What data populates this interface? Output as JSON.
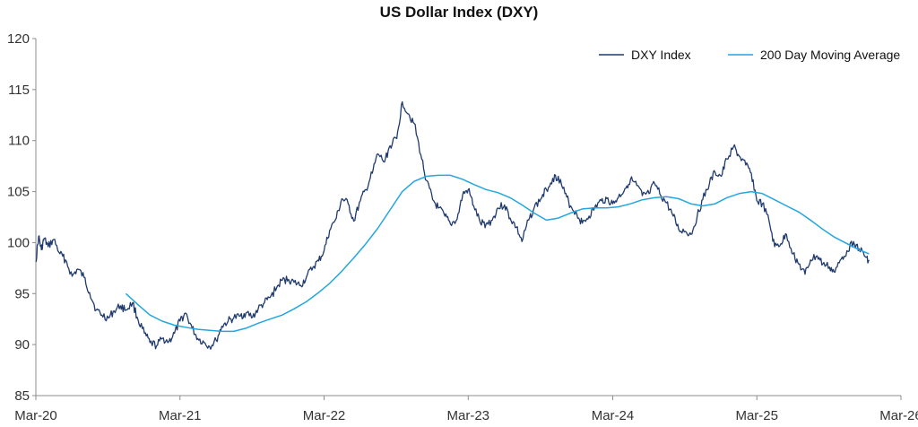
{
  "chart_data": {
    "type": "line",
    "title": "US Dollar Index (DXY)",
    "xlabel": "",
    "ylabel": "",
    "ylim": [
      85,
      120
    ],
    "yticks": [
      85,
      90,
      95,
      100,
      105,
      110,
      115,
      120
    ],
    "xlim": [
      "2020-03-01",
      "2026-03-01"
    ],
    "xticks": [
      {
        "date": "2020-03-01",
        "label": "Mar-20"
      },
      {
        "date": "2021-03-01",
        "label": "Mar-21"
      },
      {
        "date": "2022-03-01",
        "label": "Mar-22"
      },
      {
        "date": "2023-03-01",
        "label": "Mar-23"
      },
      {
        "date": "2024-03-01",
        "label": "Mar-24"
      },
      {
        "date": "2025-03-01",
        "label": "Mar-25"
      },
      {
        "date": "2026-03-01",
        "label": "Mar-26"
      }
    ],
    "grid": false,
    "legend": "top-right",
    "series": [
      {
        "name": "DXY Index",
        "color": "#1f3a6e",
        "points": [
          [
            "2020-03-01",
            98.1
          ],
          [
            "2020-03-08",
            100.6
          ],
          [
            "2020-03-15",
            99.3
          ],
          [
            "2020-03-22",
            100.4
          ],
          [
            "2020-04-01",
            99.6
          ],
          [
            "2020-04-15",
            100.3
          ],
          [
            "2020-05-01",
            98.9
          ],
          [
            "2020-05-15",
            98.3
          ],
          [
            "2020-06-01",
            96.7
          ],
          [
            "2020-06-15",
            97.4
          ],
          [
            "2020-07-01",
            96.6
          ],
          [
            "2020-07-15",
            95.1
          ],
          [
            "2020-08-01",
            93.4
          ],
          [
            "2020-08-15",
            92.9
          ],
          [
            "2020-09-01",
            92.6
          ],
          [
            "2020-09-15",
            93.3
          ],
          [
            "2020-10-01",
            93.8
          ],
          [
            "2020-10-15",
            93.4
          ],
          [
            "2020-11-01",
            94.1
          ],
          [
            "2020-11-15",
            92.4
          ],
          [
            "2020-12-01",
            91.1
          ],
          [
            "2020-12-15",
            90.2
          ],
          [
            "2021-01-01",
            89.9
          ],
          [
            "2021-01-15",
            90.6
          ],
          [
            "2021-02-01",
            90.3
          ],
          [
            "2021-02-15",
            91.1
          ],
          [
            "2021-03-01",
            92.3
          ],
          [
            "2021-03-15",
            93.1
          ],
          [
            "2021-04-01",
            91.6
          ],
          [
            "2021-04-15",
            90.6
          ],
          [
            "2021-05-01",
            90.2
          ],
          [
            "2021-05-15",
            89.8
          ],
          [
            "2021-06-01",
            90.4
          ],
          [
            "2021-06-15",
            91.8
          ],
          [
            "2021-07-01",
            92.3
          ],
          [
            "2021-07-15",
            92.6
          ],
          [
            "2021-08-01",
            92.8
          ],
          [
            "2021-08-15",
            93.1
          ],
          [
            "2021-09-01",
            92.7
          ],
          [
            "2021-09-15",
            93.5
          ],
          [
            "2021-10-01",
            94.1
          ],
          [
            "2021-10-15",
            94.6
          ],
          [
            "2021-11-01",
            95.6
          ],
          [
            "2021-11-15",
            96.3
          ],
          [
            "2021-12-01",
            96.4
          ],
          [
            "2021-12-15",
            96.1
          ],
          [
            "2022-01-01",
            95.8
          ],
          [
            "2022-01-15",
            96.6
          ],
          [
            "2022-02-01",
            97.6
          ],
          [
            "2022-02-15",
            98.2
          ],
          [
            "2022-03-01",
            99.2
          ],
          [
            "2022-03-15",
            101.2
          ],
          [
            "2022-04-01",
            102.4
          ],
          [
            "2022-04-15",
            104.3
          ],
          [
            "2022-05-01",
            103.8
          ],
          [
            "2022-05-15",
            102.1
          ],
          [
            "2022-06-01",
            104.1
          ],
          [
            "2022-06-15",
            105.2
          ],
          [
            "2022-07-01",
            106.8
          ],
          [
            "2022-07-15",
            108.7
          ],
          [
            "2022-08-01",
            107.9
          ],
          [
            "2022-08-15",
            109.5
          ],
          [
            "2022-09-01",
            110.2
          ],
          [
            "2022-09-15",
            113.8
          ],
          [
            "2022-10-01",
            112.6
          ],
          [
            "2022-10-15",
            111.7
          ],
          [
            "2022-11-01",
            108.6
          ],
          [
            "2022-11-15",
            106.1
          ],
          [
            "2022-12-01",
            104.2
          ],
          [
            "2022-12-15",
            103.4
          ],
          [
            "2023-01-01",
            102.6
          ],
          [
            "2023-01-15",
            101.8
          ],
          [
            "2023-02-01",
            102.3
          ],
          [
            "2023-02-15",
            104.7
          ],
          [
            "2023-03-01",
            105.2
          ],
          [
            "2023-03-15",
            103.6
          ],
          [
            "2023-04-01",
            101.9
          ],
          [
            "2023-04-15",
            101.8
          ],
          [
            "2023-05-01",
            102.2
          ],
          [
            "2023-05-15",
            103.4
          ],
          [
            "2023-06-01",
            103.7
          ],
          [
            "2023-06-15",
            102.4
          ],
          [
            "2023-07-01",
            101.5
          ],
          [
            "2023-07-15",
            100.1
          ],
          [
            "2023-08-01",
            102.2
          ],
          [
            "2023-08-15",
            103.4
          ],
          [
            "2023-09-01",
            104.3
          ],
          [
            "2023-09-15",
            105.2
          ],
          [
            "2023-10-01",
            106.3
          ],
          [
            "2023-10-15",
            106.5
          ],
          [
            "2023-11-01",
            104.8
          ],
          [
            "2023-11-15",
            103.6
          ],
          [
            "2023-12-01",
            102.8
          ],
          [
            "2023-12-15",
            101.9
          ],
          [
            "2024-01-01",
            102.6
          ],
          [
            "2024-01-15",
            103.4
          ],
          [
            "2024-02-01",
            104.1
          ],
          [
            "2024-02-15",
            104.3
          ],
          [
            "2024-03-01",
            103.8
          ],
          [
            "2024-03-15",
            104.4
          ],
          [
            "2024-04-01",
            105.3
          ],
          [
            "2024-04-15",
            106.2
          ],
          [
            "2024-05-01",
            105.6
          ],
          [
            "2024-05-15",
            104.6
          ],
          [
            "2024-06-01",
            104.8
          ],
          [
            "2024-06-15",
            105.8
          ],
          [
            "2024-07-01",
            104.6
          ],
          [
            "2024-07-15",
            103.9
          ],
          [
            "2024-08-01",
            102.6
          ],
          [
            "2024-08-15",
            101.3
          ],
          [
            "2024-09-01",
            101.1
          ],
          [
            "2024-09-15",
            100.8
          ],
          [
            "2024-10-01",
            102.6
          ],
          [
            "2024-10-15",
            104.2
          ],
          [
            "2024-11-01",
            105.8
          ],
          [
            "2024-11-15",
            106.9
          ],
          [
            "2024-12-01",
            106.5
          ],
          [
            "2024-12-15",
            108.2
          ],
          [
            "2025-01-01",
            109.4
          ],
          [
            "2025-01-15",
            108.5
          ],
          [
            "2025-02-01",
            107.6
          ],
          [
            "2025-02-15",
            106.8
          ],
          [
            "2025-03-01",
            104.1
          ],
          [
            "2025-03-15",
            103.8
          ],
          [
            "2025-04-01",
            102.1
          ],
          [
            "2025-04-15",
            99.6
          ],
          [
            "2025-05-01",
            99.9
          ],
          [
            "2025-05-15",
            100.8
          ],
          [
            "2025-06-01",
            98.9
          ],
          [
            "2025-06-15",
            97.9
          ],
          [
            "2025-07-01",
            96.9
          ],
          [
            "2025-07-15",
            98.3
          ],
          [
            "2025-08-01",
            98.7
          ],
          [
            "2025-08-15",
            97.9
          ],
          [
            "2025-09-01",
            97.6
          ],
          [
            "2025-09-15",
            97.1
          ],
          [
            "2025-10-01",
            98.4
          ],
          [
            "2025-10-15",
            99.2
          ],
          [
            "2025-11-01",
            100.1
          ],
          [
            "2025-11-15",
            99.4
          ],
          [
            "2025-12-01",
            98.6
          ],
          [
            "2025-12-10",
            98.3
          ]
        ]
      },
      {
        "name": "200 Day Moving Average",
        "color": "#23a6e0",
        "points": [
          [
            "2020-10-15",
            95.0
          ],
          [
            "2020-11-15",
            93.9
          ],
          [
            "2020-12-15",
            92.9
          ],
          [
            "2021-01-15",
            92.3
          ],
          [
            "2021-02-15",
            91.9
          ],
          [
            "2021-03-15",
            91.7
          ],
          [
            "2021-04-15",
            91.5
          ],
          [
            "2021-05-15",
            91.4
          ],
          [
            "2021-06-15",
            91.3
          ],
          [
            "2021-07-15",
            91.3
          ],
          [
            "2021-08-15",
            91.6
          ],
          [
            "2021-09-15",
            92.1
          ],
          [
            "2021-10-15",
            92.5
          ],
          [
            "2021-11-15",
            92.9
          ],
          [
            "2021-12-15",
            93.5
          ],
          [
            "2022-01-15",
            94.2
          ],
          [
            "2022-02-15",
            95.1
          ],
          [
            "2022-03-15",
            96.0
          ],
          [
            "2022-04-15",
            97.2
          ],
          [
            "2022-05-15",
            98.5
          ],
          [
            "2022-06-15",
            99.9
          ],
          [
            "2022-07-15",
            101.4
          ],
          [
            "2022-08-15",
            103.2
          ],
          [
            "2022-09-15",
            105.0
          ],
          [
            "2022-10-15",
            106.0
          ],
          [
            "2022-11-15",
            106.5
          ],
          [
            "2022-12-15",
            106.6
          ],
          [
            "2023-01-15",
            106.6
          ],
          [
            "2023-02-15",
            106.2
          ],
          [
            "2023-03-15",
            105.7
          ],
          [
            "2023-04-15",
            105.2
          ],
          [
            "2023-05-15",
            104.9
          ],
          [
            "2023-06-15",
            104.4
          ],
          [
            "2023-07-15",
            103.7
          ],
          [
            "2023-08-15",
            102.9
          ],
          [
            "2023-09-15",
            102.2
          ],
          [
            "2023-10-15",
            102.4
          ],
          [
            "2023-11-15",
            102.9
          ],
          [
            "2023-12-15",
            103.3
          ],
          [
            "2024-01-15",
            103.4
          ],
          [
            "2024-02-15",
            103.4
          ],
          [
            "2024-03-15",
            103.5
          ],
          [
            "2024-04-15",
            103.8
          ],
          [
            "2024-05-15",
            104.2
          ],
          [
            "2024-06-15",
            104.4
          ],
          [
            "2024-07-15",
            104.5
          ],
          [
            "2024-08-15",
            104.3
          ],
          [
            "2024-09-15",
            103.8
          ],
          [
            "2024-10-15",
            103.6
          ],
          [
            "2024-11-15",
            103.8
          ],
          [
            "2024-12-15",
            104.4
          ],
          [
            "2025-01-15",
            104.8
          ],
          [
            "2025-02-15",
            105.0
          ],
          [
            "2025-03-15",
            104.8
          ],
          [
            "2025-04-15",
            104.2
          ],
          [
            "2025-05-15",
            103.6
          ],
          [
            "2025-06-15",
            103.0
          ],
          [
            "2025-07-15",
            102.2
          ],
          [
            "2025-08-15",
            101.3
          ],
          [
            "2025-09-15",
            100.5
          ],
          [
            "2025-10-15",
            99.9
          ],
          [
            "2025-11-15",
            99.3
          ],
          [
            "2025-12-10",
            98.9
          ]
        ]
      }
    ]
  }
}
